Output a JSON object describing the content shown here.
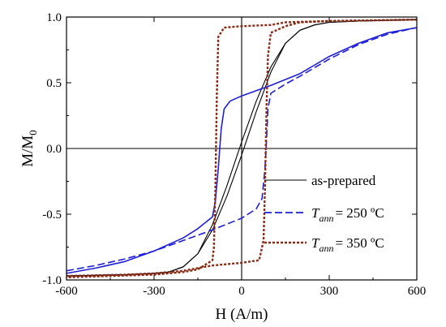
{
  "chart_data": {
    "type": "line",
    "xlabel": "H (A/m)",
    "ylabel": "M/M",
    "ylabel_sub": "0",
    "xlim": [
      -600,
      600
    ],
    "ylim": [
      -1.0,
      1.0
    ],
    "xticks": [
      -600,
      -300,
      0,
      300,
      600
    ],
    "xtick_labels": [
      "-600",
      "-300",
      "0",
      "300",
      "600"
    ],
    "yticks": [
      -1.0,
      -0.5,
      0.0,
      0.5,
      1.0
    ],
    "ytick_labels": [
      "-1.0",
      "-0.5",
      "0.0",
      "0.5",
      "1.0"
    ],
    "zero_lines": true,
    "legend_position": "bottom-right",
    "series": [
      {
        "name": "as-prepared",
        "color": "#000000",
        "style": "solid",
        "branches": [
          [
            [
              -600,
              -0.97
            ],
            [
              -400,
              -0.96
            ],
            [
              -300,
              -0.95
            ],
            [
              -250,
              -0.94
            ],
            [
              -200,
              -0.9
            ],
            [
              -150,
              -0.8
            ],
            [
              -100,
              -0.62
            ],
            [
              -50,
              -0.36
            ],
            [
              0,
              -0.05
            ],
            [
              50,
              0.28
            ],
            [
              100,
              0.58
            ],
            [
              150,
              0.8
            ],
            [
              200,
              0.9
            ],
            [
              250,
              0.94
            ],
            [
              300,
              0.96
            ],
            [
              400,
              0.97
            ],
            [
              600,
              0.98
            ]
          ],
          [
            [
              600,
              0.98
            ],
            [
              400,
              0.97
            ],
            [
              300,
              0.96
            ],
            [
              250,
              0.94
            ],
            [
              200,
              0.9
            ],
            [
              150,
              0.8
            ],
            [
              100,
              0.62
            ],
            [
              50,
              0.36
            ],
            [
              0,
              0.05
            ],
            [
              -50,
              -0.28
            ],
            [
              -100,
              -0.58
            ],
            [
              -150,
              -0.8
            ],
            [
              -200,
              -0.9
            ],
            [
              -250,
              -0.94
            ],
            [
              -300,
              -0.95
            ],
            [
              -400,
              -0.96
            ],
            [
              -600,
              -0.97
            ]
          ]
        ]
      },
      {
        "name": "= 250 ºC",
        "name_prefix": "T",
        "name_sub": "ann",
        "color": "#1f1fd6",
        "style": "mixed",
        "branches": [
          [
            [
              -600,
              -0.93
            ],
            [
              -500,
              -0.89
            ],
            [
              -400,
              -0.84
            ],
            [
              -300,
              -0.78
            ],
            [
              -200,
              -0.7
            ],
            [
              -100,
              -0.62
            ],
            [
              0,
              -0.53
            ],
            [
              50,
              -0.46
            ],
            [
              70,
              -0.38
            ],
            [
              80,
              -0.15
            ],
            [
              85,
              0.05
            ],
            [
              90,
              0.3
            ],
            [
              100,
              0.42
            ],
            [
              150,
              0.49
            ],
            [
              200,
              0.55
            ],
            [
              300,
              0.68
            ],
            [
              400,
              0.79
            ],
            [
              500,
              0.87
            ],
            [
              600,
              0.92
            ]
          ],
          [
            [
              600,
              0.92
            ],
            [
              500,
              0.88
            ],
            [
              400,
              0.8
            ],
            [
              300,
              0.7
            ],
            [
              200,
              0.57
            ],
            [
              100,
              0.48
            ],
            [
              0,
              0.4
            ],
            [
              -40,
              0.36
            ],
            [
              -60,
              0.3
            ],
            [
              -70,
              0.15
            ],
            [
              -80,
              -0.15
            ],
            [
              -90,
              -0.4
            ],
            [
              -100,
              -0.52
            ],
            [
              -150,
              -0.61
            ],
            [
              -200,
              -0.68
            ],
            [
              -300,
              -0.78
            ],
            [
              -400,
              -0.86
            ],
            [
              -500,
              -0.91
            ],
            [
              -600,
              -0.95
            ]
          ]
        ]
      },
      {
        "name": "= 350 ºC",
        "name_prefix": "T",
        "name_sub": "ann",
        "color": "#8b2a15",
        "style": "dotted",
        "branches": [
          [
            [
              -600,
              -0.97
            ],
            [
              -400,
              -0.96
            ],
            [
              -300,
              -0.95
            ],
            [
              -200,
              -0.93
            ],
            [
              -150,
              -0.91
            ],
            [
              -100,
              -0.89
            ],
            [
              0,
              -0.87
            ],
            [
              60,
              -0.85
            ],
            [
              75,
              -0.7
            ],
            [
              80,
              -0.3
            ],
            [
              85,
              0.3
            ],
            [
              90,
              0.7
            ],
            [
              100,
              0.88
            ],
            [
              150,
              0.93
            ],
            [
              200,
              0.96
            ],
            [
              300,
              0.97
            ],
            [
              600,
              0.98
            ]
          ],
          [
            [
              600,
              0.98
            ],
            [
              300,
              0.97
            ],
            [
              150,
              0.96
            ],
            [
              100,
              0.94
            ],
            [
              0,
              0.93
            ],
            [
              -60,
              0.92
            ],
            [
              -80,
              0.85
            ],
            [
              -85,
              0.4
            ],
            [
              -90,
              -0.3
            ],
            [
              -95,
              -0.75
            ],
            [
              -100,
              -0.85
            ],
            [
              -150,
              -0.92
            ],
            [
              -200,
              -0.94
            ],
            [
              -300,
              -0.96
            ],
            [
              -600,
              -0.98
            ]
          ]
        ]
      }
    ]
  }
}
